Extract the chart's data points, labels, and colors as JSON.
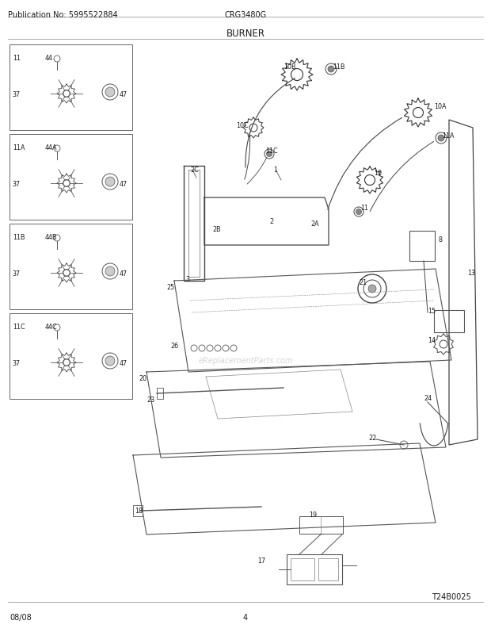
{
  "title": "BURNER",
  "pub_no": "Publication No: 5995522884",
  "model": "CRG3480G",
  "date": "08/08",
  "page": "4",
  "diagram_id": "T24B0025",
  "bg_color": "#ffffff",
  "text_color": "#1a1a1a",
  "gray": "#555555",
  "light_gray": "#888888",
  "header_fontsize": 7,
  "title_fontsize": 8.5,
  "label_fontsize": 6.0,
  "footer_fontsize": 7
}
